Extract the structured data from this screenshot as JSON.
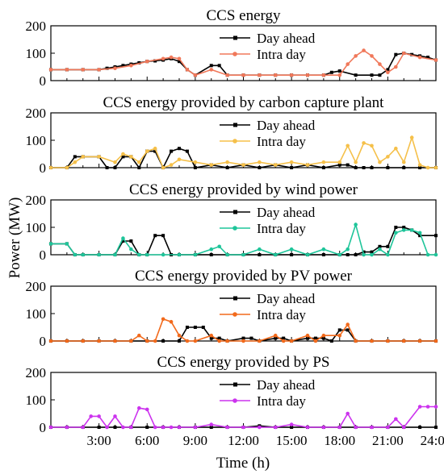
{
  "figure": {
    "ylabel": "Power (MW)",
    "xlabel": "Time (h)",
    "x_tick_labels": [
      "3:00",
      "6:00",
      "9:00",
      "12:00",
      "15:00",
      "18:00",
      "21:00",
      "24:00"
    ]
  },
  "chart_data": [
    {
      "type": "line",
      "title": "CCS energy",
      "ylim": [
        0,
        200
      ],
      "yticks": [
        0,
        100,
        200
      ],
      "xlim": [
        0,
        24
      ],
      "grid": false,
      "legend_position": "top-center",
      "series": [
        {
          "name": "Day ahead",
          "color": "#000000",
          "x": [
            0,
            1,
            2,
            3,
            3.5,
            4,
            4.5,
            5,
            5.5,
            6,
            6.5,
            7,
            7.5,
            8,
            8.5,
            9,
            10,
            10.5,
            11,
            12,
            13,
            14,
            15,
            16,
            17,
            17.5,
            18,
            19,
            20,
            20.5,
            21,
            21.5,
            22,
            22.5,
            23,
            23.5,
            24
          ],
          "y": [
            40,
            40,
            40,
            40,
            45,
            50,
            55,
            60,
            65,
            70,
            72,
            75,
            80,
            70,
            40,
            20,
            55,
            55,
            20,
            20,
            20,
            20,
            20,
            20,
            20,
            30,
            35,
            20,
            20,
            20,
            40,
            95,
            100,
            95,
            90,
            85,
            75
          ]
        },
        {
          "name": "Intra day",
          "color": "#f0785a",
          "x": [
            0,
            1,
            2,
            3,
            4,
            5,
            6,
            7,
            7.5,
            8,
            8.5,
            9,
            10,
            11,
            12,
            13,
            14,
            15,
            16,
            17,
            18,
            18.5,
            19,
            19.5,
            20,
            20.5,
            21,
            21.5,
            22,
            23,
            24
          ],
          "y": [
            40,
            40,
            40,
            40,
            45,
            55,
            70,
            80,
            85,
            80,
            40,
            20,
            40,
            20,
            20,
            20,
            20,
            20,
            20,
            20,
            20,
            60,
            90,
            110,
            90,
            60,
            30,
            50,
            100,
            85,
            75
          ]
        }
      ]
    },
    {
      "type": "line",
      "title": "CCS energy provided by carbon capture plant",
      "ylim": [
        0,
        200
      ],
      "yticks": [
        0,
        100,
        200
      ],
      "xlim": [
        0,
        24
      ],
      "grid": false,
      "legend_position": "top-center",
      "series": [
        {
          "name": "Day ahead",
          "color": "#000000",
          "x": [
            0,
            1,
            1.5,
            2,
            3,
            3.5,
            4,
            4.5,
            5,
            5.5,
            6,
            6.5,
            7,
            7.5,
            8,
            8.5,
            9,
            10,
            11,
            12,
            13,
            14,
            15,
            16,
            17,
            18,
            18.5,
            19,
            19.5,
            20,
            21,
            22,
            23,
            24
          ],
          "y": [
            0,
            0,
            40,
            40,
            40,
            0,
            0,
            40,
            40,
            0,
            60,
            60,
            0,
            60,
            70,
            60,
            0,
            10,
            0,
            10,
            0,
            10,
            0,
            10,
            0,
            10,
            10,
            0,
            0,
            0,
            0,
            0,
            0,
            0
          ]
        },
        {
          "name": "Intra day",
          "color": "#f5c04a",
          "x": [
            0,
            1,
            1.5,
            2,
            3,
            4,
            4.5,
            5,
            5.5,
            6,
            6.5,
            7,
            7.5,
            8,
            9,
            10,
            11,
            12,
            13,
            14,
            15,
            16,
            17,
            18,
            18.5,
            19,
            19.5,
            20,
            20.5,
            21,
            21.5,
            22,
            22.5,
            23,
            23.5,
            24
          ],
          "y": [
            0,
            0,
            20,
            40,
            40,
            20,
            50,
            40,
            20,
            60,
            70,
            0,
            10,
            30,
            20,
            10,
            20,
            10,
            20,
            10,
            20,
            10,
            20,
            20,
            80,
            20,
            90,
            80,
            20,
            40,
            70,
            20,
            110,
            10,
            0,
            0
          ]
        }
      ]
    },
    {
      "type": "line",
      "title": "CCS energy provided by wind power",
      "ylim": [
        0,
        200
      ],
      "yticks": [
        0,
        100,
        200
      ],
      "xlim": [
        0,
        24
      ],
      "grid": false,
      "legend_position": "top-center",
      "series": [
        {
          "name": "Day ahead",
          "color": "#000000",
          "x": [
            0,
            1,
            1.5,
            2,
            3,
            4,
            4.5,
            5,
            5.5,
            6,
            6.5,
            7,
            7.5,
            8,
            9,
            10,
            11,
            12,
            13,
            14,
            15,
            16,
            17,
            18,
            18.5,
            19,
            19.5,
            20,
            20.5,
            21,
            21.5,
            22,
            22.5,
            23,
            24
          ],
          "y": [
            40,
            40,
            0,
            0,
            0,
            0,
            50,
            50,
            0,
            0,
            70,
            70,
            0,
            0,
            0,
            0,
            0,
            0,
            0,
            0,
            0,
            0,
            0,
            0,
            0,
            0,
            10,
            10,
            30,
            30,
            100,
            100,
            90,
            70,
            70
          ]
        },
        {
          "name": "Intra day",
          "color": "#1fc59a",
          "x": [
            0,
            1,
            1.5,
            2,
            3,
            4,
            4.5,
            5,
            5.5,
            6,
            7,
            8,
            9,
            10,
            10.5,
            11,
            12,
            13,
            14,
            15,
            16,
            17,
            18,
            18.5,
            19,
            19.5,
            20,
            20.5,
            21,
            21.5,
            22,
            22.5,
            23,
            23.5,
            24
          ],
          "y": [
            40,
            40,
            0,
            0,
            0,
            0,
            60,
            20,
            0,
            0,
            0,
            0,
            0,
            20,
            30,
            0,
            0,
            20,
            0,
            20,
            0,
            20,
            0,
            20,
            110,
            0,
            0,
            20,
            0,
            80,
            90,
            90,
            80,
            0,
            0
          ]
        }
      ]
    },
    {
      "type": "line",
      "title": "CCS energy provided by PV power",
      "ylim": [
        0,
        200
      ],
      "yticks": [
        0,
        100,
        200
      ],
      "xlim": [
        0,
        24
      ],
      "grid": false,
      "legend_position": "top-center",
      "series": [
        {
          "name": "Day ahead",
          "color": "#000000",
          "x": [
            0,
            1,
            2,
            3,
            4,
            5,
            6,
            7,
            8,
            8.5,
            9,
            9.5,
            10,
            10.5,
            11,
            12,
            12.5,
            13,
            14,
            14.5,
            15,
            16,
            16.5,
            17,
            17.5,
            18,
            18.5,
            19,
            20,
            21,
            22,
            23,
            24
          ],
          "y": [
            0,
            0,
            0,
            0,
            0,
            0,
            0,
            0,
            0,
            50,
            50,
            50,
            10,
            10,
            0,
            10,
            10,
            0,
            10,
            10,
            0,
            10,
            10,
            10,
            0,
            40,
            40,
            0,
            0,
            0,
            0,
            0,
            0
          ]
        },
        {
          "name": "Intra day",
          "color": "#f26a1c",
          "x": [
            0,
            1,
            2,
            3,
            4,
            5,
            5.5,
            6,
            6.5,
            7,
            7.5,
            8,
            8.5,
            9,
            10,
            10.5,
            11,
            12,
            13,
            14,
            14.5,
            15,
            16,
            16.5,
            17,
            18,
            18.5,
            19,
            20,
            21,
            22,
            23,
            24
          ],
          "y": [
            0,
            0,
            0,
            0,
            0,
            0,
            20,
            0,
            0,
            80,
            70,
            20,
            0,
            0,
            20,
            0,
            0,
            0,
            0,
            20,
            0,
            0,
            20,
            0,
            20,
            20,
            60,
            0,
            0,
            0,
            0,
            0,
            0
          ]
        }
      ]
    },
    {
      "type": "line",
      "title": "CCS energy provided by PS",
      "ylim": [
        0,
        200
      ],
      "yticks": [
        0,
        100,
        200
      ],
      "xlim": [
        0,
        24
      ],
      "grid": false,
      "legend_position": "top-center",
      "series": [
        {
          "name": "Day ahead",
          "color": "#000000",
          "x": [
            0,
            1,
            2,
            3,
            4,
            5,
            6,
            7,
            8,
            9,
            10,
            11,
            12,
            13,
            14,
            15,
            16,
            17,
            18,
            19,
            20,
            21,
            22,
            23,
            24
          ],
          "y": [
            0,
            0,
            0,
            0,
            0,
            0,
            0,
            0,
            0,
            0,
            0,
            0,
            0,
            5,
            0,
            0,
            0,
            0,
            0,
            0,
            0,
            0,
            0,
            0,
            0
          ]
        },
        {
          "name": "Intra day",
          "color": "#cc33ee",
          "x": [
            0,
            1,
            2,
            2.5,
            3,
            3.5,
            4,
            4.5,
            5,
            5.5,
            6,
            6.5,
            7,
            7.5,
            8,
            9,
            10,
            11,
            12,
            13,
            14,
            15,
            16,
            17,
            18,
            18.5,
            19,
            20,
            21,
            21.5,
            22,
            23,
            23.5,
            24
          ],
          "y": [
            0,
            0,
            0,
            40,
            40,
            0,
            40,
            0,
            0,
            70,
            65,
            0,
            0,
            0,
            0,
            0,
            10,
            0,
            0,
            0,
            0,
            10,
            0,
            0,
            0,
            50,
            0,
            0,
            0,
            30,
            0,
            75,
            75,
            75
          ]
        }
      ]
    }
  ]
}
